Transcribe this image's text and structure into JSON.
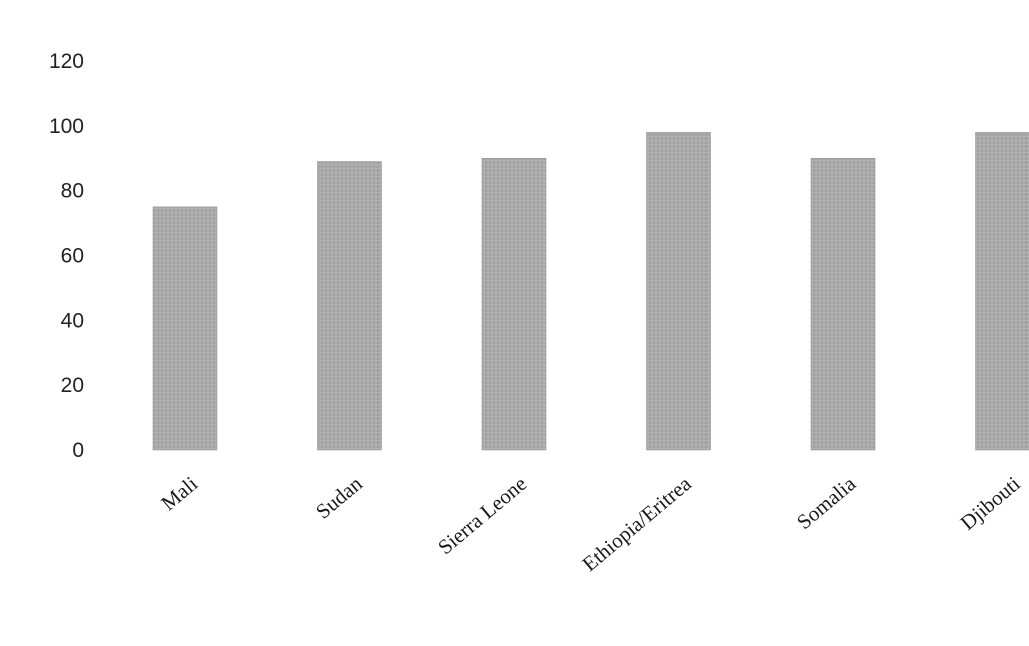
{
  "chart_data": {
    "type": "bar",
    "title": "",
    "xlabel": "",
    "ylabel": "",
    "categories": [
      "Mali",
      "Sudan",
      "Sierra Leone",
      "Ethiopia/Eritrea",
      "Somalia",
      "Djibouti"
    ],
    "values": [
      75,
      89,
      90,
      98,
      90,
      98
    ],
    "ylim": [
      0,
      120
    ],
    "yticks": [
      0,
      20,
      40,
      60,
      80,
      100,
      120
    ],
    "grid": false,
    "legend": "none",
    "bar_color": "#a9a9a9",
    "text_color": "#222222"
  }
}
